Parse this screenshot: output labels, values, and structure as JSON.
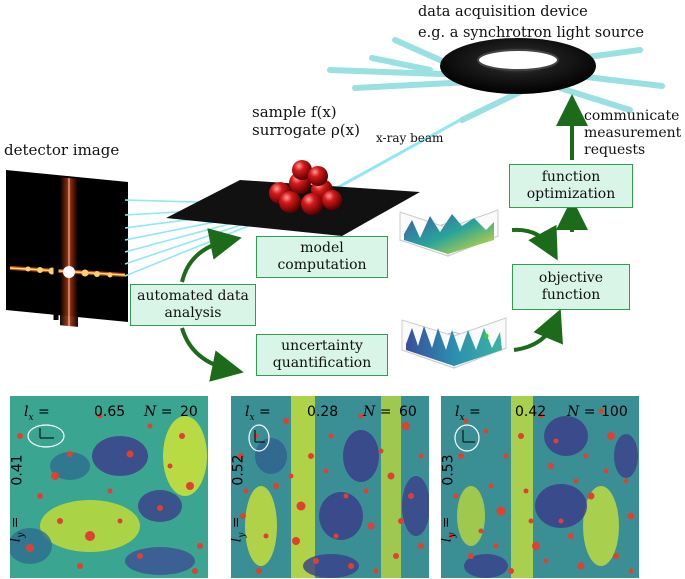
{
  "labels": {
    "device_line1": "data acquisition device",
    "device_line2": "e.g. a synchrotron light source",
    "sample_line1": "sample f(x)",
    "sample_line2": "surrogate ρ(x)",
    "xray": "x-ray beam",
    "detector": "detector image",
    "communicate_line1": "communicate",
    "communicate_line2": "measurement",
    "communicate_line3": "requests"
  },
  "boxes": {
    "model": "model computation",
    "automated": "automated data analysis",
    "uncertainty": "uncertainty quantification",
    "objective": "objective function",
    "optimization": "function optimization"
  },
  "colors": {
    "box_fill": "#d9f5e8",
    "box_border": "#2f9e4f",
    "arrow": "#1b6b1b",
    "beam": "#7fe3f0",
    "point": "#e0402f"
  },
  "panels": [
    {
      "lx_label": "l",
      "lx_sub": "x",
      "lx_value": "0.65",
      "n_label": "N",
      "n_value": "20",
      "ly_label": "l",
      "ly_sub": "y",
      "ly_value": "0.41"
    },
    {
      "lx_label": "l",
      "lx_sub": "x",
      "lx_value": "0.28",
      "n_label": "N",
      "n_value": "60",
      "ly_label": "l",
      "ly_sub": "y",
      "ly_value": "0.52"
    },
    {
      "lx_label": "l",
      "lx_sub": "x",
      "lx_value": "0.42",
      "n_label": "N",
      "n_value": "100",
      "ly_label": "l",
      "ly_sub": "y",
      "ly_value": "0.53"
    }
  ]
}
